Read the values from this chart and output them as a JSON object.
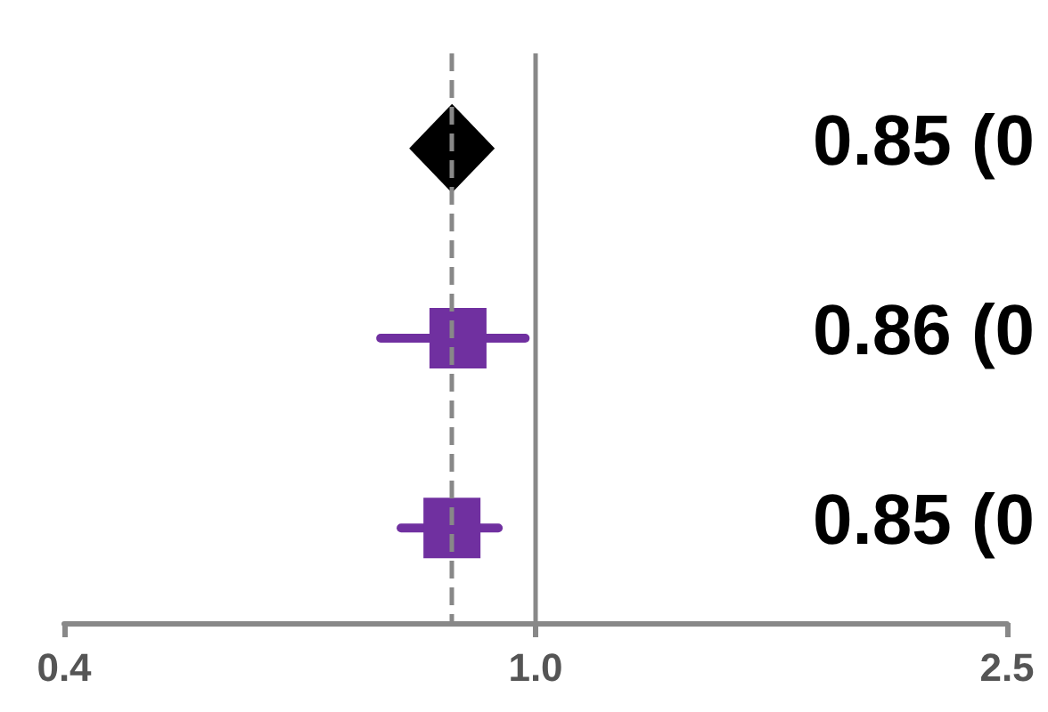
{
  "chart_data": {
    "type": "scatter",
    "orientation": "horizontal",
    "categories": [
      null,
      null,
      null
    ],
    "series": [
      {
        "color": "#000000",
        "marker": "diamond",
        "values": [
          0.85,
          null,
          null
        ]
      },
      {
        "color": "#7030a0",
        "marker": "square",
        "values": [
          null,
          0.86,
          null
        ],
        "errors": [
          null,
          [
            0.74,
            0.98
          ],
          null
        ]
      },
      {
        "color": "#7030a0",
        "marker": "square",
        "values": [
          null,
          null,
          0.85
        ],
        "errors": [
          null,
          null,
          [
            0.77,
            0.93
          ]
        ]
      }
    ],
    "annotations": [
      "0.85 (0",
      "0.86 (0",
      "0.85 (0"
    ],
    "xlim": [
      0.4,
      2.5
    ],
    "xticks": [
      0.4,
      {
        "value": 1,
        "label": "1.0"
      },
      2.5
    ],
    "log": "x",
    "grid": false,
    "ref_lines": [
      {
        "axis": "x",
        "value": 0.85,
        "color": "#888888",
        "line_style": "dashed"
      },
      {
        "axis": "x",
        "value": 1,
        "color": "#888888",
        "line_style": "solid"
      }
    ]
  }
}
